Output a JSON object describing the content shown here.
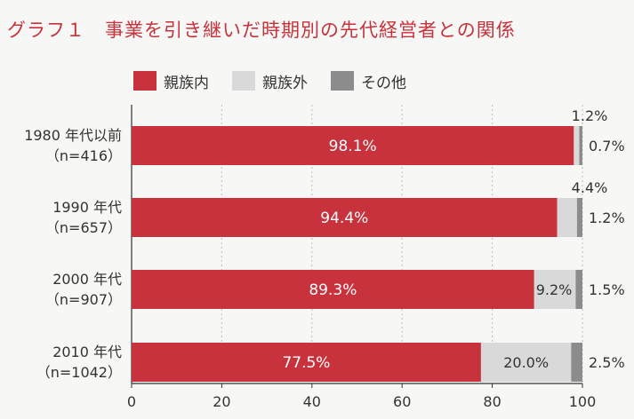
{
  "chart_data": {
    "type": "bar",
    "orientation": "horizontal",
    "stacked": true,
    "title": "グラフ１　事業を引き継いだ時期別の先代経営者との関係",
    "categories": [
      [
        "1980 年代以前",
        "（n=416）"
      ],
      [
        "1990 年代",
        "（n=657）"
      ],
      [
        "2000 年代",
        "（n=907）"
      ],
      [
        "2010 年代",
        "（n=1042）"
      ]
    ],
    "series": [
      {
        "name": "親族内",
        "values": [
          98.1,
          94.4,
          89.3,
          77.5
        ],
        "labels": [
          "98.1%",
          "94.4%",
          "89.3%",
          "77.5%"
        ],
        "color": "#c8323c"
      },
      {
        "name": "親族外",
        "values": [
          1.2,
          4.4,
          9.2,
          20.0
        ],
        "labels": [
          "1.2%",
          "4.4%",
          "9.2%",
          "20.0%"
        ],
        "color": "#d9d9d9"
      },
      {
        "name": "その他",
        "values": [
          0.7,
          1.2,
          1.5,
          2.5
        ],
        "labels": [
          "0.7%",
          "1.2%",
          "1.5%",
          "2.5%"
        ],
        "color": "#8c8c8c"
      }
    ],
    "xlim": [
      0,
      100
    ],
    "xticks": [
      "0",
      "20",
      "40",
      "60",
      "80",
      "100"
    ],
    "grid": true,
    "legend": "top"
  }
}
